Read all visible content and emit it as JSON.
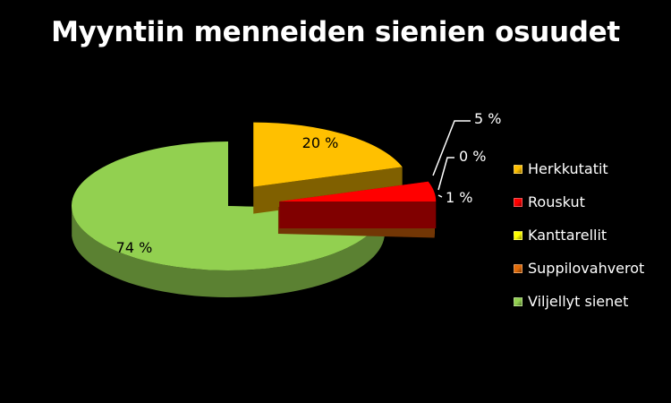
{
  "chart_data": {
    "type": "pie",
    "title": "Myyntiin menneiden sienien osuudet",
    "categories": [
      "Herkkutatit",
      "Rouskut",
      "Kanttarellit",
      "Suppilovahverot",
      "Viljellyt sienet"
    ],
    "values": [
      20,
      5,
      0,
      1,
      74
    ],
    "data_labels": [
      "20 %",
      "5 %",
      "0 %",
      "1 %",
      "74 %"
    ],
    "colors": [
      "#ffc000",
      "#ff0000",
      "#ffff00",
      "#e36c09",
      "#92d050"
    ],
    "exploded": true,
    "three_d": true,
    "legend_position": "right"
  }
}
